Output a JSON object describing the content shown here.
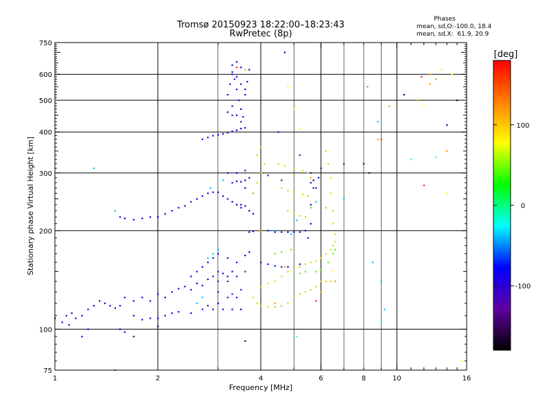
{
  "chart_data": {
    "type": "scatter",
    "title": "Tromsø 20150923 18:22:00–18:23:43",
    "subtitle": "RwPretec (8p)",
    "xlabel": "Frequency [MHz]",
    "ylabel": "Stationary phase Virtual Height [km]",
    "x_scale": "log",
    "y_scale": "log",
    "xlim": [
      1,
      16
    ],
    "ylim": [
      75,
      750
    ],
    "grid": true,
    "x_ticks_major": [
      1,
      2,
      4,
      6,
      10,
      16
    ],
    "x_ticks_minor": [
      3,
      5,
      7,
      8,
      9
    ],
    "y_ticks": [
      75,
      100,
      200,
      300,
      400,
      500,
      600,
      750
    ],
    "y_gridlines": [
      100,
      200,
      300,
      400,
      500,
      600
    ],
    "stats": {
      "heading": "Phases",
      "line1": "mean, sd,O:-100.0, 18.4",
      "line2": "mean, sd,X:  61.9, 20.9"
    },
    "colorbar": {
      "label": "[deg]",
      "range": [
        -180,
        180
      ],
      "ticks": [
        100,
        0,
        -100
      ],
      "colors": [
        "#ff0000",
        "#ff8000",
        "#ffff00",
        "#00ff00",
        "#00ffff",
        "#0000ff",
        "#6000a0",
        "#000000"
      ]
    },
    "series": [
      {
        "color": "#0000dd",
        "points": [
          [
            1.0,
            108
          ],
          [
            1.05,
            105
          ],
          [
            1.08,
            110
          ],
          [
            1.1,
            103
          ],
          [
            1.12,
            112
          ],
          [
            1.15,
            108
          ],
          [
            1.2,
            110
          ],
          [
            1.25,
            115
          ],
          [
            1.3,
            118
          ],
          [
            1.35,
            122
          ],
          [
            1.4,
            120
          ],
          [
            1.45,
            118
          ],
          [
            1.5,
            116
          ],
          [
            1.55,
            118
          ],
          [
            1.6,
            125
          ],
          [
            1.7,
            122
          ],
          [
            1.8,
            125
          ],
          [
            1.9,
            122
          ],
          [
            2.0,
            128
          ],
          [
            2.1,
            125
          ],
          [
            2.2,
            130
          ],
          [
            2.3,
            133
          ],
          [
            2.4,
            135
          ],
          [
            2.5,
            132
          ],
          [
            2.6,
            138
          ],
          [
            2.7,
            136
          ],
          [
            2.8,
            142
          ],
          [
            2.9,
            145
          ],
          [
            3.0,
            150
          ],
          [
            3.1,
            148
          ],
          [
            3.2,
            145
          ],
          [
            3.3,
            150
          ],
          [
            1.7,
            110
          ],
          [
            1.8,
            107
          ],
          [
            1.9,
            108
          ],
          [
            2.0,
            108
          ],
          [
            2.1,
            110
          ],
          [
            2.2,
            112
          ],
          [
            2.3,
            113
          ],
          [
            2.5,
            112
          ],
          [
            2.7,
            115
          ],
          [
            2.9,
            115
          ],
          [
            3.1,
            115
          ],
          [
            3.3,
            115
          ],
          [
            3.5,
            115
          ],
          [
            2.8,
            118
          ],
          [
            3.0,
            120
          ],
          [
            3.2,
            125
          ],
          [
            3.4,
            125
          ],
          [
            2.5,
            145
          ],
          [
            2.6,
            150
          ],
          [
            2.7,
            155
          ],
          [
            2.8,
            160
          ],
          [
            2.9,
            165
          ],
          [
            3.0,
            170
          ],
          [
            3.2,
            165
          ],
          [
            3.4,
            160
          ],
          [
            3.6,
            168
          ],
          [
            3.7,
            172
          ],
          [
            1.55,
            220
          ],
          [
            1.6,
            218
          ],
          [
            1.7,
            216
          ],
          [
            1.8,
            218
          ],
          [
            1.9,
            220
          ],
          [
            2.0,
            220
          ],
          [
            2.1,
            225
          ],
          [
            2.2,
            230
          ],
          [
            2.3,
            235
          ],
          [
            2.4,
            238
          ],
          [
            2.5,
            245
          ],
          [
            2.6,
            250
          ],
          [
            2.7,
            255
          ],
          [
            2.8,
            260
          ],
          [
            2.9,
            262
          ],
          [
            3.0,
            262
          ],
          [
            3.1,
            255
          ],
          [
            3.2,
            250
          ],
          [
            3.3,
            245
          ],
          [
            3.4,
            240
          ],
          [
            3.5,
            235
          ],
          [
            3.6,
            238
          ],
          [
            2.7,
            380
          ],
          [
            2.8,
            385
          ],
          [
            2.9,
            390
          ],
          [
            3.0,
            392
          ],
          [
            3.1,
            395
          ],
          [
            3.2,
            398
          ],
          [
            3.3,
            402
          ],
          [
            3.4,
            405
          ],
          [
            3.5,
            410
          ],
          [
            3.6,
            412
          ],
          [
            3.3,
            280
          ],
          [
            3.4,
            283
          ],
          [
            3.5,
            282
          ],
          [
            3.6,
            285
          ],
          [
            3.7,
            290
          ],
          [
            3.2,
            300
          ],
          [
            3.4,
            300
          ],
          [
            3.6,
            305
          ],
          [
            3.2,
            520
          ],
          [
            3.25,
            560
          ],
          [
            3.3,
            610
          ],
          [
            3.35,
            580
          ],
          [
            3.4,
            540
          ],
          [
            3.45,
            500
          ],
          [
            3.5,
            470
          ],
          [
            3.55,
            445
          ],
          [
            3.6,
            520
          ],
          [
            3.65,
            570
          ],
          [
            3.7,
            620
          ],
          [
            3.3,
            640
          ],
          [
            3.4,
            655
          ],
          [
            3.5,
            630
          ],
          [
            3.2,
            460
          ],
          [
            3.3,
            480
          ],
          [
            3.4,
            450
          ],
          [
            4.0,
            200
          ],
          [
            4.2,
            200
          ],
          [
            4.4,
            198
          ],
          [
            4.6,
            198
          ],
          [
            4.8,
            198
          ],
          [
            5.0,
            198
          ],
          [
            5.2,
            198
          ],
          [
            5.4,
            200
          ],
          [
            3.7,
            198
          ],
          [
            3.8,
            199
          ],
          [
            4.0,
            160
          ],
          [
            4.2,
            158
          ],
          [
            4.4,
            156
          ],
          [
            4.6,
            155
          ],
          [
            4.8,
            155
          ],
          [
            5.0,
            155
          ],
          [
            5.2,
            158
          ],
          [
            5.5,
            190
          ],
          [
            5.6,
            210
          ],
          [
            5.6,
            240
          ],
          [
            5.8,
            270
          ],
          [
            5.9,
            290
          ],
          [
            5.6,
            300
          ],
          [
            5.7,
            285
          ],
          [
            1.2,
            95
          ],
          [
            1.25,
            100
          ],
          [
            1.55,
            100
          ],
          [
            1.6,
            98
          ],
          [
            3.5,
            240
          ],
          [
            3.7,
            230
          ],
          [
            3.8,
            225
          ],
          [
            3.6,
            270
          ],
          [
            3.8,
            260
          ]
        ]
      },
      {
        "color": "#4000aa",
        "points": [
          [
            3.3,
            600
          ],
          [
            3.4,
            590
          ],
          [
            3.5,
            560
          ],
          [
            3.6,
            540
          ],
          [
            3.3,
            450
          ],
          [
            3.5,
            430
          ],
          [
            3.0,
            140
          ],
          [
            3.2,
            140
          ],
          [
            3.4,
            145
          ],
          [
            3.6,
            150
          ],
          [
            3.0,
            130
          ],
          [
            3.3,
            128
          ],
          [
            3.5,
            132
          ],
          [
            5.6,
            280
          ],
          [
            5.7,
            270
          ],
          [
            4.5,
            400
          ],
          [
            5.2,
            340
          ],
          [
            6.0,
            310
          ],
          [
            7.0,
            320
          ],
          [
            4.0,
            300
          ],
          [
            4.2,
            295
          ],
          [
            4.6,
            285
          ]
        ]
      },
      {
        "color": "#00bbff",
        "points": [
          [
            2.8,
            165
          ],
          [
            2.9,
            170
          ],
          [
            3.0,
            175
          ],
          [
            2.6,
            120
          ],
          [
            2.7,
            125
          ],
          [
            2.85,
            270
          ],
          [
            3.1,
            285
          ],
          [
            4.4,
            200
          ],
          [
            4.9,
            195
          ],
          [
            5.1,
            215
          ],
          [
            5.8,
            245
          ],
          [
            1.3,
            310
          ],
          [
            1.5,
            230
          ],
          [
            7.0,
            250
          ],
          [
            8.5,
            160
          ],
          [
            9.0,
            140
          ],
          [
            8.8,
            430
          ],
          [
            9.2,
            115
          ],
          [
            8.2,
            550
          ]
        ]
      },
      {
        "color": "#ccdd00",
        "points": [
          [
            3.8,
            125
          ],
          [
            3.9,
            120
          ],
          [
            4.0,
            118
          ],
          [
            4.2,
            117
          ],
          [
            4.4,
            117
          ],
          [
            4.6,
            118
          ],
          [
            4.8,
            120
          ],
          [
            5.0,
            125
          ],
          [
            5.2,
            128
          ],
          [
            5.4,
            130
          ],
          [
            5.6,
            132
          ],
          [
            5.8,
            135
          ],
          [
            6.0,
            140
          ],
          [
            6.2,
            140
          ],
          [
            6.4,
            140
          ],
          [
            6.6,
            140
          ],
          [
            4.0,
            135
          ],
          [
            4.2,
            138
          ],
          [
            4.4,
            140
          ],
          [
            4.6,
            145
          ],
          [
            4.8,
            150
          ],
          [
            5.0,
            155
          ],
          [
            5.2,
            155
          ],
          [
            5.4,
            158
          ],
          [
            5.6,
            160
          ],
          [
            5.8,
            162
          ],
          [
            6.0,
            165
          ],
          [
            6.2,
            170
          ],
          [
            6.4,
            175
          ],
          [
            6.5,
            180
          ],
          [
            6.6,
            185
          ],
          [
            6.6,
            195
          ],
          [
            6.5,
            210
          ],
          [
            6.5,
            230
          ],
          [
            6.4,
            260
          ],
          [
            6.4,
            290
          ],
          [
            6.3,
            320
          ],
          [
            6.2,
            350
          ],
          [
            3.8,
            260
          ],
          [
            3.9,
            280
          ],
          [
            4.0,
            300
          ],
          [
            4.1,
            320
          ],
          [
            3.9,
            340
          ],
          [
            4.0,
            360
          ],
          [
            4.5,
            320
          ],
          [
            4.7,
            315
          ],
          [
            5.0,
            310
          ],
          [
            5.3,
            305
          ],
          [
            5.5,
            300
          ],
          [
            4.6,
            270
          ],
          [
            4.8,
            265
          ],
          [
            5.0,
            262
          ],
          [
            5.3,
            258
          ],
          [
            5.5,
            255
          ],
          [
            4.8,
            230
          ],
          [
            5.0,
            225
          ],
          [
            5.2,
            222
          ],
          [
            5.4,
            220
          ]
        ]
      },
      {
        "color": "#55ee00",
        "points": [
          [
            5.0,
            145
          ],
          [
            5.2,
            148
          ],
          [
            5.4,
            150
          ],
          [
            5.8,
            150
          ],
          [
            6.0,
            152
          ],
          [
            6.3,
            160
          ],
          [
            6.5,
            170
          ],
          [
            6.6,
            175
          ],
          [
            5.6,
            235
          ],
          [
            6.2,
            235
          ],
          [
            4.4,
            170
          ],
          [
            4.6,
            172
          ],
          [
            4.9,
            175
          ]
        ]
      },
      {
        "color": "#ff9900",
        "points": [
          [
            3.6,
            620
          ],
          [
            4.0,
            200
          ],
          [
            4.4,
            120
          ],
          [
            4.7,
            155
          ],
          [
            5.6,
            290
          ],
          [
            6.0,
            130
          ],
          [
            6.6,
            140
          ],
          [
            11.5,
            500
          ],
          [
            12.5,
            600
          ],
          [
            13.0,
            580
          ],
          [
            14.0,
            350
          ],
          [
            8.8,
            380
          ],
          [
            9.5,
            480
          ],
          [
            12.5,
            560
          ]
        ]
      },
      {
        "color": "#ff2200",
        "points": [
          [
            1.5,
            75
          ],
          [
            5.8,
            122
          ],
          [
            11.8,
            590
          ],
          [
            12.0,
            275
          ],
          [
            3.4,
            630
          ],
          [
            9.0,
            380
          ]
        ]
      },
      {
        "color": "#ffff00",
        "points": [
          [
            4.8,
            550
          ],
          [
            5.2,
            410
          ],
          [
            5.0,
            470
          ],
          [
            13.5,
            620
          ],
          [
            14.5,
            600
          ],
          [
            6.5,
            150
          ],
          [
            15.5,
            80
          ],
          [
            14.0,
            260
          ],
          [
            12.0,
            480
          ]
        ]
      },
      {
        "color": "#000080",
        "points": [
          [
            4.7,
            700
          ],
          [
            3.6,
            92
          ],
          [
            10.5,
            520
          ],
          [
            14.0,
            420
          ],
          [
            15.0,
            500
          ],
          [
            8.0,
            320
          ],
          [
            8.3,
            300
          ],
          [
            2.0,
            102
          ],
          [
            1.7,
            95
          ]
        ]
      },
      {
        "color": "#00ffff",
        "points": [
          [
            5.1,
            95
          ],
          [
            9.0,
            105
          ],
          [
            11.0,
            330
          ],
          [
            13.0,
            335
          ]
        ]
      }
    ]
  }
}
